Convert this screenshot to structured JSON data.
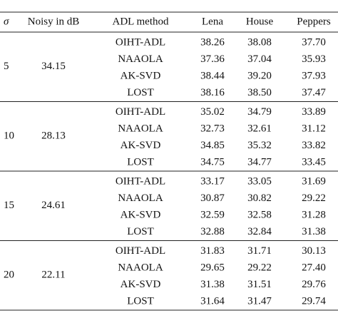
{
  "table": {
    "header": [
      "σ",
      "Noisy in dB",
      "ADL method",
      "Lena",
      "House",
      "Peppers"
    ],
    "groups": [
      {
        "sigma": "5",
        "noisy": "34.15",
        "rows": [
          [
            "OIHT-ADL",
            "38.26",
            "38.08",
            "37.70"
          ],
          [
            "NAAOLA",
            "37.36",
            "37.04",
            "35.93"
          ],
          [
            "AK-SVD",
            "38.44",
            "39.20",
            "37.93"
          ],
          [
            "LOST",
            "38.16",
            "38.50",
            "37.47"
          ]
        ]
      },
      {
        "sigma": "10",
        "noisy": "28.13",
        "rows": [
          [
            "OIHT-ADL",
            "35.02",
            "34.79",
            "33.89"
          ],
          [
            "NAAOLA",
            "32.73",
            "32.61",
            "31.12"
          ],
          [
            "AK-SVD",
            "34.85",
            "35.32",
            "33.82"
          ],
          [
            "LOST",
            "34.75",
            "34.77",
            "33.45"
          ]
        ]
      },
      {
        "sigma": "15",
        "noisy": "24.61",
        "rows": [
          [
            "OIHT-ADL",
            "33.17",
            "33.05",
            "31.69"
          ],
          [
            "NAAOLA",
            "30.87",
            "30.82",
            "29.22"
          ],
          [
            "AK-SVD",
            "32.59",
            "32.58",
            "31.28"
          ],
          [
            "LOST",
            "32.88",
            "32.84",
            "31.38"
          ]
        ]
      },
      {
        "sigma": "20",
        "noisy": "22.11",
        "rows": [
          [
            "OIHT-ADL",
            "31.83",
            "31.71",
            "30.13"
          ],
          [
            "NAAOLA",
            "29.65",
            "29.22",
            "27.40"
          ],
          [
            "AK-SVD",
            "31.38",
            "31.51",
            "29.76"
          ],
          [
            "LOST",
            "31.64",
            "31.47",
            "29.74"
          ]
        ]
      }
    ]
  }
}
